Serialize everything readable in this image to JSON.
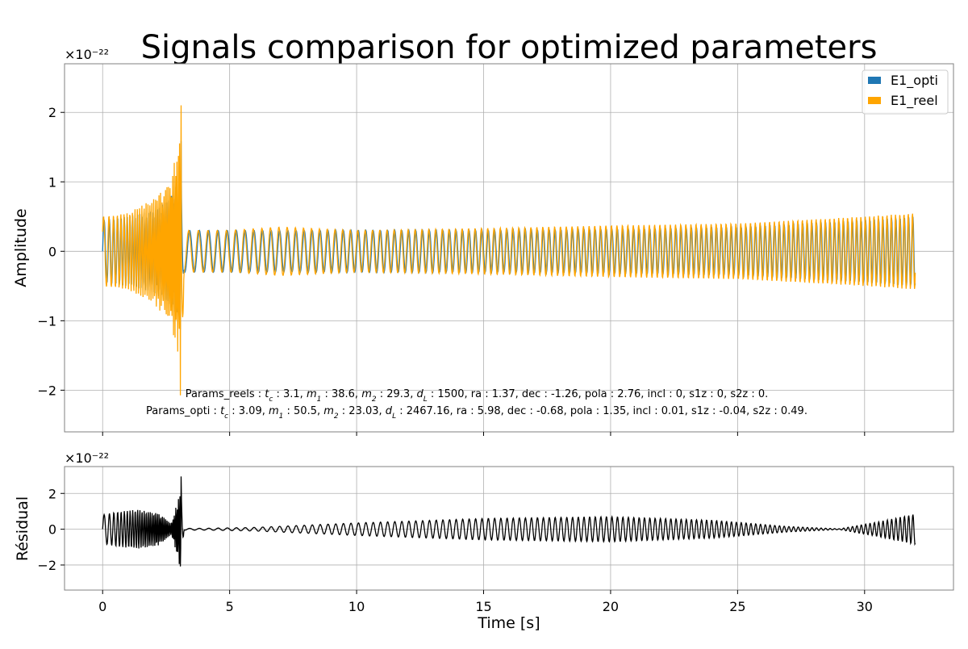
{
  "chart_data": [
    {
      "type": "line",
      "title": "Signals comparison for optimized parameters",
      "xlabel": "",
      "ylabel": "Amplitude",
      "offset_text": "×10⁻²²",
      "y_unit_exponent": -22,
      "xlim": [
        -1.5,
        33.5
      ],
      "ylim": [
        -2.6,
        2.7
      ],
      "xticks": [
        0,
        5,
        10,
        15,
        20,
        25,
        30
      ],
      "yticks": [
        -2,
        -1,
        0,
        1,
        2
      ],
      "ytick_labels": [
        "−2",
        "−1",
        "0",
        "1",
        "2"
      ],
      "grid": true,
      "legend": {
        "placement": "top-right",
        "entries": [
          {
            "name": "E1_opti",
            "color": "#1f77b4"
          },
          {
            "name": "E1_reel",
            "color": "#ffa500"
          }
        ]
      },
      "series": [
        {
          "name": "E1_opti",
          "color": "#1f77b4",
          "envelope_x": [
            0,
            1,
            2,
            2.6,
            3.0,
            3.09,
            3.2,
            5,
            10,
            15,
            20,
            25,
            30,
            32
          ],
          "envelope_y": [
            0.45,
            0.5,
            0.6,
            0.75,
            1.0,
            1.6,
            0.3,
            0.3,
            0.3,
            0.3,
            0.32,
            0.35,
            0.45,
            0.5
          ]
        },
        {
          "name": "E1_reel",
          "color": "#ffa500",
          "envelope_x": [
            0,
            1,
            2,
            2.6,
            3.0,
            3.1,
            3.2,
            5,
            7,
            10,
            15,
            20,
            25,
            30,
            32
          ],
          "envelope_y": [
            0.5,
            0.55,
            0.75,
            1.0,
            1.5,
            2.46,
            0.3,
            0.3,
            0.35,
            0.3,
            0.33,
            0.37,
            0.4,
            0.5,
            0.55
          ]
        }
      ],
      "annotations": [
        {
          "prefix": "Params_reels : ",
          "parts": [
            {
              "name": "t",
              "sub": "c",
              "value": "3.1"
            },
            {
              "name": "m",
              "sub": "1",
              "value": "38.6"
            },
            {
              "name": "m",
              "sub": "2",
              "value": "29.3"
            },
            {
              "name": "d",
              "sub": "L",
              "value": "1500"
            }
          ],
          "rest": "ra : 1.37, dec : -1.26, pola : 2.76, incl : 0, s1z : 0, s2z : 0."
        },
        {
          "prefix": "Params_opti : ",
          "parts": [
            {
              "name": "t",
              "sub": "c",
              "value": "3.09"
            },
            {
              "name": "m",
              "sub": "1",
              "value": "50.5"
            },
            {
              "name": "m",
              "sub": "2",
              "value": "23.03"
            },
            {
              "name": "d",
              "sub": "L",
              "value": "2467.16"
            }
          ],
          "rest": "ra : 5.98, dec : -0.68, pola : 1.35, incl : 0.01, s1z : -0.04, s2z : 0.49."
        }
      ]
    },
    {
      "type": "line",
      "title": "",
      "xlabel": "Time [s]",
      "ylabel": "Résidual",
      "offset_text": "×10⁻²²",
      "y_unit_exponent": -22,
      "xlim": [
        -1.5,
        33.5
      ],
      "ylim": [
        -3.4,
        3.5
      ],
      "xticks": [
        0,
        5,
        10,
        15,
        20,
        25,
        30
      ],
      "yticks": [
        -2,
        0,
        2
      ],
      "ytick_labels": [
        "−2",
        "0",
        "2"
      ],
      "grid": true,
      "series": [
        {
          "name": "",
          "color": "#000000",
          "envelope_x": [
            0,
            0.5,
            1.4,
            2.2,
            2.7,
            3.0,
            3.1,
            3.2,
            4,
            6,
            10,
            15,
            20,
            24,
            27,
            29,
            30.5,
            32
          ],
          "envelope_y": [
            0.8,
            0.95,
            1.1,
            0.9,
            0.3,
            1.8,
            3.1,
            0.05,
            0.05,
            0.1,
            0.35,
            0.6,
            0.7,
            0.5,
            0.15,
            0.02,
            0.4,
            0.85
          ]
        }
      ]
    }
  ]
}
